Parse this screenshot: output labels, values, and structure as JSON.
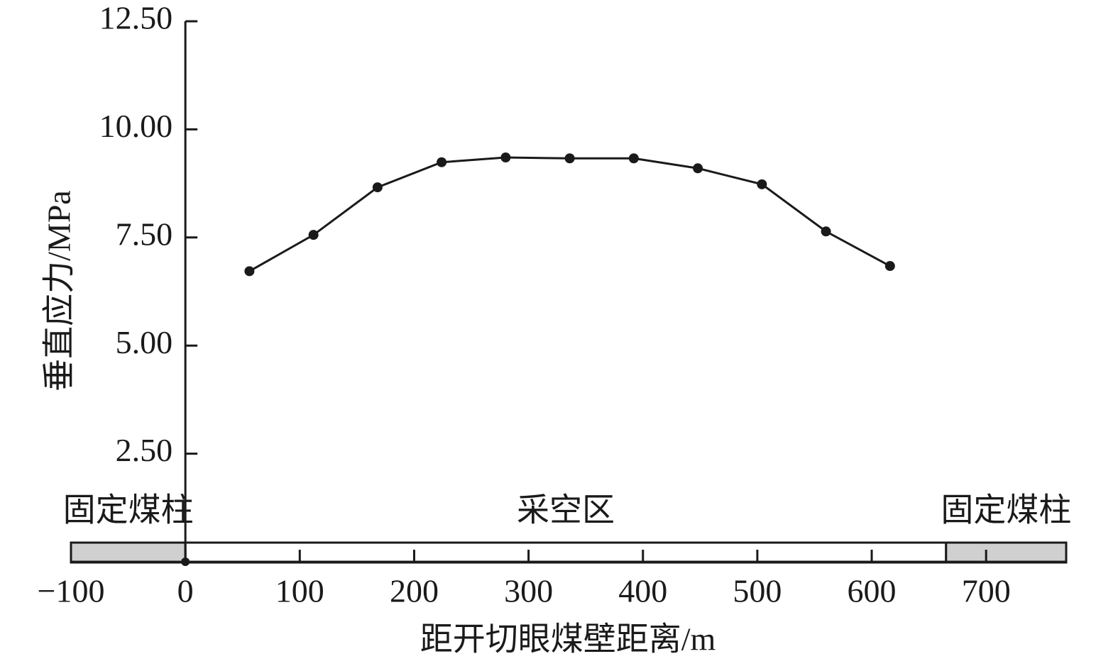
{
  "chart_data": {
    "type": "line",
    "y_label": "垂直应力/MPa",
    "x_label": "距开切眼煤壁距离/m",
    "x": [
      56,
      112,
      168,
      224,
      280,
      336,
      392,
      448,
      504,
      560,
      616
    ],
    "series": [
      {
        "color": "#1a1a1a",
        "values": [
          6.72,
          7.56,
          8.66,
          9.24,
          9.35,
          9.33,
          9.33,
          9.1,
          8.73,
          7.64,
          6.84
        ]
      }
    ],
    "xlim": [
      -100,
      770
    ],
    "ylim": [
      0,
      12.5
    ],
    "xticks": [
      {
        "value": -100,
        "label": "−100"
      },
      0,
      100,
      200,
      300,
      400,
      500,
      600,
      700
    ],
    "yticks": [
      {
        "value": 2.5,
        "label": "2.50"
      },
      {
        "value": 5,
        "label": "5.00"
      },
      {
        "value": 7.5,
        "label": "7.50"
      },
      {
        "value": 10,
        "label": "10.00"
      },
      {
        "value": 12.5,
        "label": "12.50"
      }
    ],
    "regions": [
      {
        "label": "固定煤柱",
        "x": [
          -100,
          0
        ],
        "color": "#d0d0d0"
      },
      {
        "label": "采空区",
        "x": [
          0,
          665
        ],
        "color": "#ffffff"
      },
      {
        "label": "固定煤柱",
        "x": [
          665,
          770
        ],
        "color": "#d0d0d0"
      }
    ]
  }
}
